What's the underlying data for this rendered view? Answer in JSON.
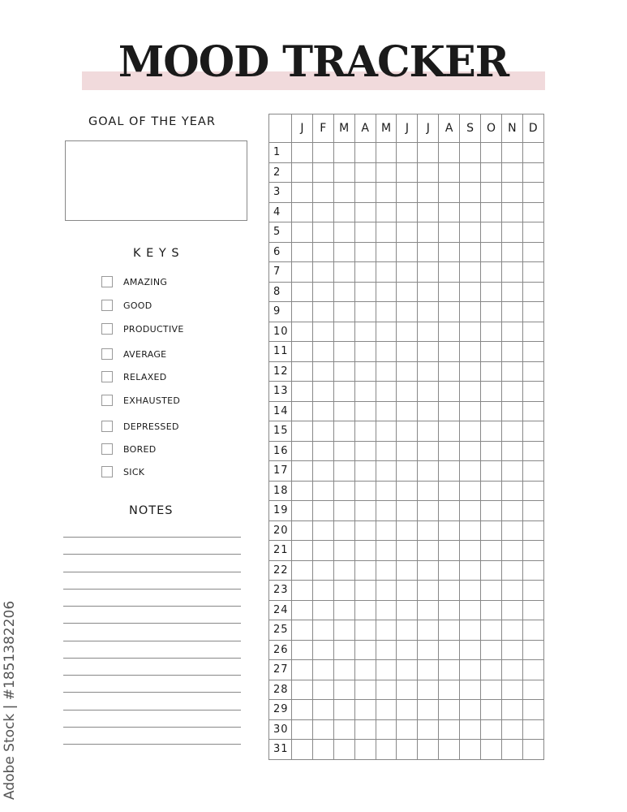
{
  "title": "MOOD TRACKER",
  "accent_color": "#f1dadc",
  "goal": {
    "heading": "GOAL OF THE YEAR"
  },
  "keys": {
    "heading": "K E Y S",
    "items": [
      "AMAZING",
      "GOOD",
      "PRODUCTIVE",
      "AVERAGE",
      "RELAXED",
      "EXHAUSTED",
      "DEPRESSED",
      "BORED",
      "SICK"
    ]
  },
  "notes": {
    "heading": "NOTES",
    "line_count": 13
  },
  "tracker": {
    "months": [
      "J",
      "F",
      "M",
      "A",
      "M",
      "J",
      "J",
      "A",
      "S",
      "O",
      "N",
      "D"
    ],
    "days": 31
  },
  "watermark": "Adobe Stock | #185138220б"
}
